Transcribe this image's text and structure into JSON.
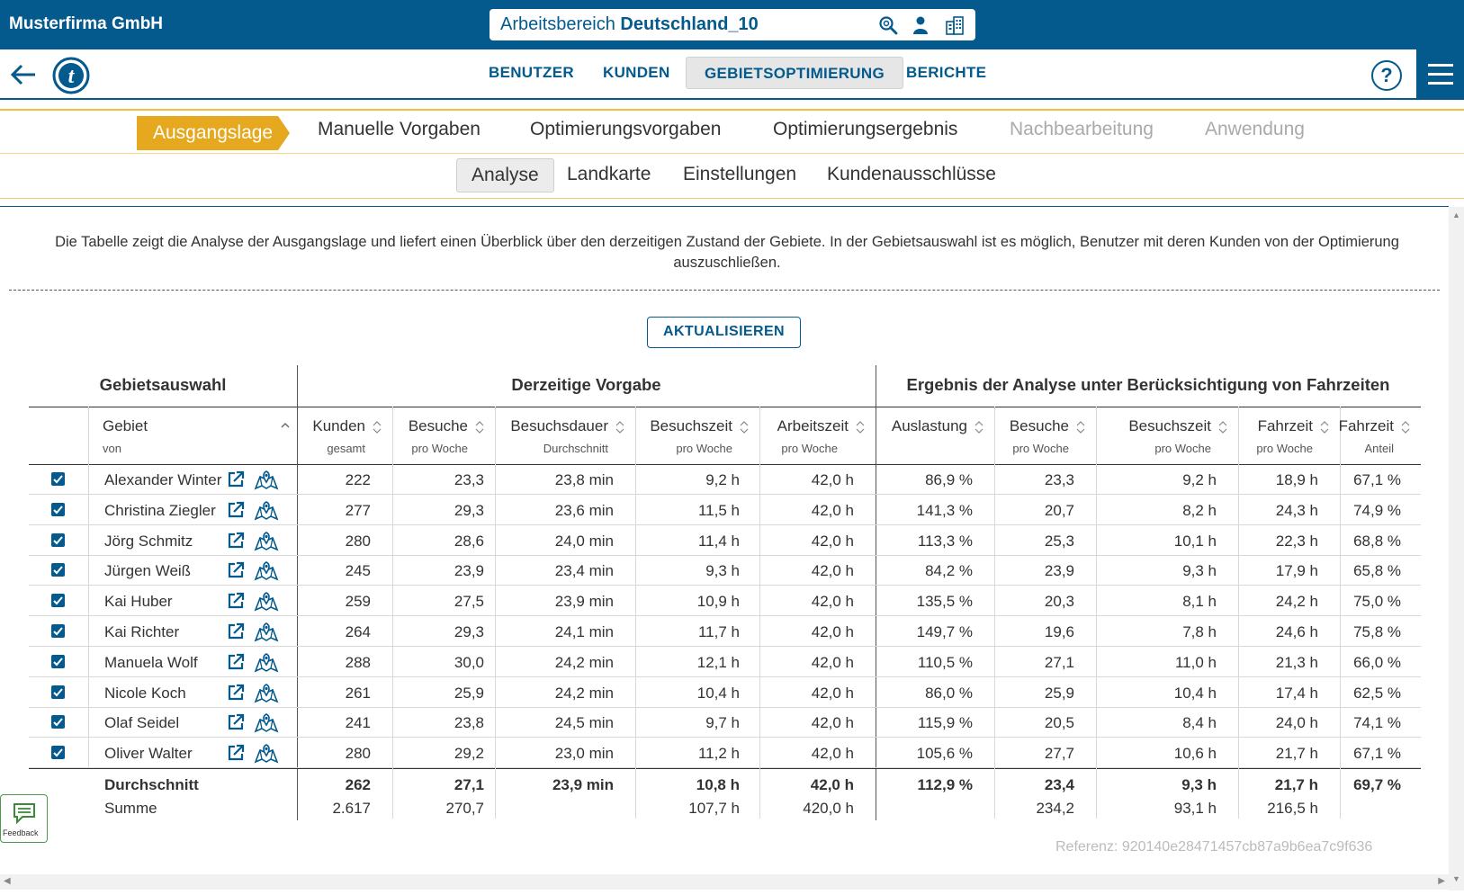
{
  "header": {
    "company": "Musterfirma GmbH",
    "workspace_prefix": "Arbeitsbereich",
    "workspace_name": "Deutschland_10"
  },
  "nav": {
    "tabs": [
      {
        "label": "BENUTZER",
        "active": false
      },
      {
        "label": "KUNDEN",
        "active": false
      },
      {
        "label": "GEBIETSOPTIMIERUNG",
        "active": true
      },
      {
        "label": "BERICHTE",
        "active": false
      }
    ],
    "help": "?"
  },
  "steps": [
    {
      "label": "Ausgangslage",
      "state": "active"
    },
    {
      "label": "Manuelle Vorgaben",
      "state": "enabled"
    },
    {
      "label": "Optimierungsvorgaben",
      "state": "enabled"
    },
    {
      "label": "Optimierungsergebnis",
      "state": "enabled"
    },
    {
      "label": "Nachbearbeitung",
      "state": "disabled"
    },
    {
      "label": "Anwendung",
      "state": "disabled"
    }
  ],
  "subtabs": [
    {
      "label": "Analyse",
      "active": true
    },
    {
      "label": "Landkarte",
      "active": false
    },
    {
      "label": "Einstellungen",
      "active": false
    },
    {
      "label": "Kundenausschlüsse",
      "active": false
    }
  ],
  "description": "Die Tabelle zeigt die Analyse der Ausgangslage und liefert einen Überblick über den derzeitigen Zustand der Gebiete. In der Gebietsauswahl ist es möglich, Benutzer mit deren Kunden von der Optimierung auszuschließen.",
  "refresh_label": "AKTUALISIEREN",
  "table": {
    "groups": [
      "Gebietsauswahl",
      "Derzeitige Vorgabe",
      "Ergebnis der Analyse unter Berücksichtigung von Fahrzeiten"
    ],
    "columns": [
      {
        "t1": "Gebiet",
        "t2": "von"
      },
      {
        "t1": "Kunden",
        "t2": "gesamt"
      },
      {
        "t1": "Besuche",
        "t2": "pro Woche"
      },
      {
        "t1": "Besuchsdauer",
        "t2": "Durchschnitt"
      },
      {
        "t1": "Besuchszeit",
        "t2": "pro Woche"
      },
      {
        "t1": "Arbeitszeit",
        "t2": "pro Woche"
      },
      {
        "t1": "Auslastung",
        "t2": ""
      },
      {
        "t1": "Besuche",
        "t2": "pro Woche"
      },
      {
        "t1": "Besuchszeit",
        "t2": "pro Woche"
      },
      {
        "t1": "Fahrzeit",
        "t2": "pro Woche"
      },
      {
        "t1": "Fahrzeit",
        "t2": "Anteil"
      }
    ],
    "rows": [
      {
        "checked": true,
        "name": "Alexander Winter",
        "v": [
          "222",
          "23,3",
          "23,8 min",
          "9,2 h",
          "42,0 h",
          "86,9 %",
          "23,3",
          "9,2 h",
          "18,9 h",
          "67,1 %"
        ]
      },
      {
        "checked": true,
        "name": "Christina Ziegler",
        "v": [
          "277",
          "29,3",
          "23,6 min",
          "11,5 h",
          "42,0 h",
          "141,3 %",
          "20,7",
          "8,2 h",
          "24,3 h",
          "74,9 %"
        ]
      },
      {
        "checked": true,
        "name": "Jörg Schmitz",
        "v": [
          "280",
          "28,6",
          "24,0 min",
          "11,4 h",
          "42,0 h",
          "113,3 %",
          "25,3",
          "10,1 h",
          "22,3 h",
          "68,8 %"
        ]
      },
      {
        "checked": true,
        "name": "Jürgen Weiß",
        "v": [
          "245",
          "23,9",
          "23,4 min",
          "9,3 h",
          "42,0 h",
          "84,2 %",
          "23,9",
          "9,3 h",
          "17,9 h",
          "65,8 %"
        ]
      },
      {
        "checked": true,
        "name": "Kai Huber",
        "v": [
          "259",
          "27,5",
          "23,9 min",
          "10,9 h",
          "42,0 h",
          "135,5 %",
          "20,3",
          "8,1 h",
          "24,2 h",
          "75,0 %"
        ]
      },
      {
        "checked": true,
        "name": "Kai Richter",
        "v": [
          "264",
          "29,3",
          "24,1 min",
          "11,7 h",
          "42,0 h",
          "149,7 %",
          "19,6",
          "7,8 h",
          "24,6 h",
          "75,8 %"
        ]
      },
      {
        "checked": true,
        "name": "Manuela Wolf",
        "v": [
          "288",
          "30,0",
          "24,2 min",
          "12,1 h",
          "42,0 h",
          "110,5 %",
          "27,1",
          "11,0 h",
          "21,3 h",
          "66,0 %"
        ]
      },
      {
        "checked": true,
        "name": "Nicole Koch",
        "v": [
          "261",
          "25,9",
          "24,2 min",
          "10,4 h",
          "42,0 h",
          "86,0 %",
          "25,9",
          "10,4 h",
          "17,4 h",
          "62,5 %"
        ]
      },
      {
        "checked": true,
        "name": "Olaf Seidel",
        "v": [
          "241",
          "23,8",
          "24,5 min",
          "9,7 h",
          "42,0 h",
          "115,9 %",
          "20,5",
          "8,4 h",
          "24,0 h",
          "74,1 %"
        ]
      },
      {
        "checked": true,
        "name": "Oliver Walter",
        "v": [
          "280",
          "29,2",
          "23,0 min",
          "11,2 h",
          "42,0 h",
          "105,6 %",
          "27,7",
          "10,6 h",
          "21,7 h",
          "67,1 %"
        ]
      }
    ],
    "average": {
      "label": "Durchschnitt",
      "v": [
        "262",
        "27,1",
        "23,9 min",
        "10,8 h",
        "42,0 h",
        "112,9 %",
        "23,4",
        "9,3 h",
        "21,7 h",
        "69,7 %"
      ]
    },
    "sum": {
      "label": "Summe",
      "v": [
        "2.617",
        "270,7",
        "",
        "107,7 h",
        "420,0 h",
        "",
        "234,2",
        "93,1 h",
        "216,5 h",
        ""
      ]
    }
  },
  "feedback_label": "Feedback",
  "reference": "Referenz: 920140e28471457cb87a9b6ea7c9f636"
}
